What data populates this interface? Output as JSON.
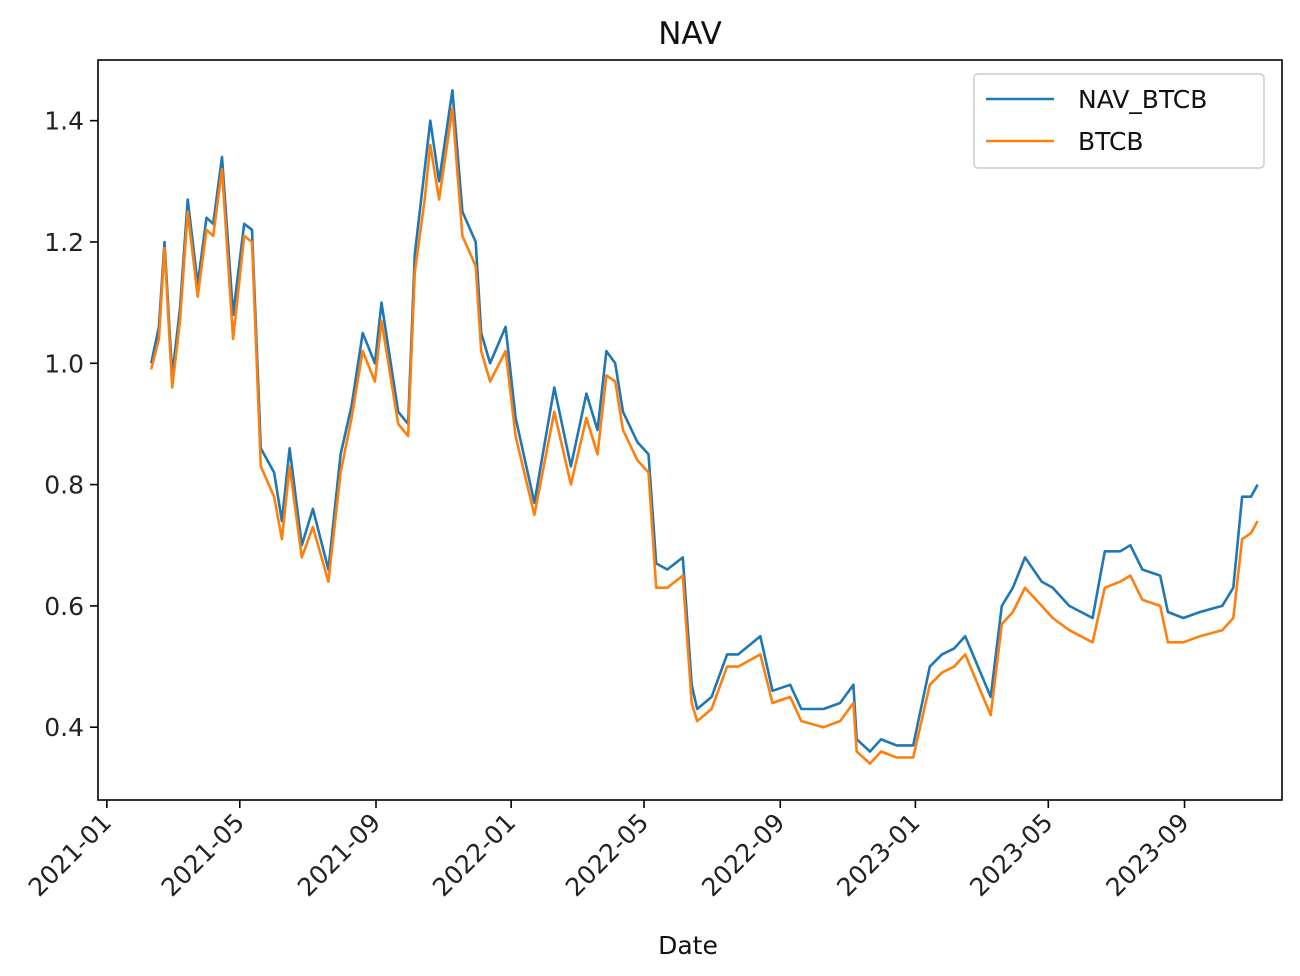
{
  "chart_data": {
    "type": "line",
    "title": "NAV",
    "xlabel": "Date",
    "ylabel": "",
    "x_range": [
      "2020-12-24",
      "2023-11-28"
    ],
    "ylim": [
      0.28,
      1.5
    ],
    "y_ticks": [
      0.4,
      0.6,
      0.8,
      1.0,
      1.2,
      1.4
    ],
    "x_ticks": [
      "2021-01",
      "2021-05",
      "2021-09",
      "2022-01",
      "2022-05",
      "2022-09",
      "2023-01",
      "2023-05",
      "2023-09"
    ],
    "grid": false,
    "legend_position": "top-right",
    "series": [
      {
        "name": "NAV_BTCB",
        "color": "#1f77b4",
        "points": [
          [
            "2021-02-10",
            1.0
          ],
          [
            "2021-02-17",
            1.06
          ],
          [
            "2021-02-22",
            1.2
          ],
          [
            "2021-03-01",
            0.98
          ],
          [
            "2021-03-08",
            1.09
          ],
          [
            "2021-03-15",
            1.27
          ],
          [
            "2021-03-24",
            1.13
          ],
          [
            "2021-04-01",
            1.24
          ],
          [
            "2021-04-07",
            1.23
          ],
          [
            "2021-04-15",
            1.34
          ],
          [
            "2021-04-25",
            1.08
          ],
          [
            "2021-05-05",
            1.23
          ],
          [
            "2021-05-12",
            1.22
          ],
          [
            "2021-05-20",
            0.86
          ],
          [
            "2021-06-01",
            0.82
          ],
          [
            "2021-06-08",
            0.74
          ],
          [
            "2021-06-15",
            0.86
          ],
          [
            "2021-06-26",
            0.7
          ],
          [
            "2021-07-06",
            0.76
          ],
          [
            "2021-07-20",
            0.66
          ],
          [
            "2021-07-31",
            0.85
          ],
          [
            "2021-08-10",
            0.93
          ],
          [
            "2021-08-20",
            1.05
          ],
          [
            "2021-08-31",
            1.0
          ],
          [
            "2021-09-06",
            1.1
          ],
          [
            "2021-09-21",
            0.92
          ],
          [
            "2021-09-30",
            0.9
          ],
          [
            "2021-10-06",
            1.18
          ],
          [
            "2021-10-15",
            1.32
          ],
          [
            "2021-10-20",
            1.4
          ],
          [
            "2021-10-28",
            1.3
          ],
          [
            "2021-11-09",
            1.45
          ],
          [
            "2021-11-18",
            1.25
          ],
          [
            "2021-11-30",
            1.2
          ],
          [
            "2021-12-05",
            1.05
          ],
          [
            "2021-12-13",
            1.0
          ],
          [
            "2021-12-27",
            1.06
          ],
          [
            "2022-01-05",
            0.91
          ],
          [
            "2022-01-22",
            0.77
          ],
          [
            "2022-02-09",
            0.96
          ],
          [
            "2022-02-24",
            0.83
          ],
          [
            "2022-03-10",
            0.95
          ],
          [
            "2022-03-20",
            0.89
          ],
          [
            "2022-03-28",
            1.02
          ],
          [
            "2022-04-05",
            1.0
          ],
          [
            "2022-04-12",
            0.92
          ],
          [
            "2022-04-25",
            0.87
          ],
          [
            "2022-05-05",
            0.85
          ],
          [
            "2022-05-12",
            0.67
          ],
          [
            "2022-05-22",
            0.66
          ],
          [
            "2022-06-05",
            0.68
          ],
          [
            "2022-06-13",
            0.47
          ],
          [
            "2022-06-18",
            0.43
          ],
          [
            "2022-07-01",
            0.45
          ],
          [
            "2022-07-15",
            0.52
          ],
          [
            "2022-07-25",
            0.52
          ],
          [
            "2022-08-14",
            0.55
          ],
          [
            "2022-08-25",
            0.46
          ],
          [
            "2022-09-10",
            0.47
          ],
          [
            "2022-09-20",
            0.43
          ],
          [
            "2022-10-10",
            0.43
          ],
          [
            "2022-10-25",
            0.44
          ],
          [
            "2022-11-06",
            0.47
          ],
          [
            "2022-11-09",
            0.38
          ],
          [
            "2022-11-21",
            0.36
          ],
          [
            "2022-12-01",
            0.38
          ],
          [
            "2022-12-15",
            0.37
          ],
          [
            "2022-12-30",
            0.37
          ],
          [
            "2023-01-14",
            0.5
          ],
          [
            "2023-01-25",
            0.52
          ],
          [
            "2023-02-05",
            0.53
          ],
          [
            "2023-02-15",
            0.55
          ],
          [
            "2023-03-10",
            0.45
          ],
          [
            "2023-03-20",
            0.6
          ],
          [
            "2023-03-30",
            0.63
          ],
          [
            "2023-04-10",
            0.68
          ],
          [
            "2023-04-25",
            0.64
          ],
          [
            "2023-05-05",
            0.63
          ],
          [
            "2023-05-20",
            0.6
          ],
          [
            "2023-06-10",
            0.58
          ],
          [
            "2023-06-21",
            0.69
          ],
          [
            "2023-07-05",
            0.69
          ],
          [
            "2023-07-14",
            0.7
          ],
          [
            "2023-07-25",
            0.66
          ],
          [
            "2023-08-10",
            0.65
          ],
          [
            "2023-08-17",
            0.59
          ],
          [
            "2023-08-31",
            0.58
          ],
          [
            "2023-09-15",
            0.59
          ],
          [
            "2023-10-05",
            0.6
          ],
          [
            "2023-10-15",
            0.63
          ],
          [
            "2023-10-23",
            0.78
          ],
          [
            "2023-10-31",
            0.78
          ],
          [
            "2023-11-06",
            0.8
          ]
        ]
      },
      {
        "name": "BTCB",
        "color": "#ff7f0e",
        "points": [
          [
            "2021-02-10",
            0.99
          ],
          [
            "2021-02-17",
            1.04
          ],
          [
            "2021-02-22",
            1.19
          ],
          [
            "2021-03-01",
            0.96
          ],
          [
            "2021-03-08",
            1.07
          ],
          [
            "2021-03-15",
            1.25
          ],
          [
            "2021-03-24",
            1.11
          ],
          [
            "2021-04-01",
            1.22
          ],
          [
            "2021-04-07",
            1.21
          ],
          [
            "2021-04-15",
            1.32
          ],
          [
            "2021-04-25",
            1.04
          ],
          [
            "2021-05-05",
            1.21
          ],
          [
            "2021-05-12",
            1.2
          ],
          [
            "2021-05-20",
            0.83
          ],
          [
            "2021-06-01",
            0.78
          ],
          [
            "2021-06-08",
            0.71
          ],
          [
            "2021-06-15",
            0.83
          ],
          [
            "2021-06-26",
            0.68
          ],
          [
            "2021-07-06",
            0.73
          ],
          [
            "2021-07-20",
            0.64
          ],
          [
            "2021-07-31",
            0.82
          ],
          [
            "2021-08-10",
            0.91
          ],
          [
            "2021-08-20",
            1.02
          ],
          [
            "2021-08-31",
            0.97
          ],
          [
            "2021-09-06",
            1.07
          ],
          [
            "2021-09-21",
            0.9
          ],
          [
            "2021-09-30",
            0.88
          ],
          [
            "2021-10-06",
            1.15
          ],
          [
            "2021-10-15",
            1.27
          ],
          [
            "2021-10-20",
            1.36
          ],
          [
            "2021-10-28",
            1.27
          ],
          [
            "2021-11-09",
            1.42
          ],
          [
            "2021-11-18",
            1.21
          ],
          [
            "2021-11-30",
            1.16
          ],
          [
            "2021-12-05",
            1.02
          ],
          [
            "2021-12-13",
            0.97
          ],
          [
            "2021-12-27",
            1.02
          ],
          [
            "2022-01-05",
            0.88
          ],
          [
            "2022-01-22",
            0.75
          ],
          [
            "2022-02-09",
            0.92
          ],
          [
            "2022-02-24",
            0.8
          ],
          [
            "2022-03-10",
            0.91
          ],
          [
            "2022-03-20",
            0.85
          ],
          [
            "2022-03-28",
            0.98
          ],
          [
            "2022-04-05",
            0.97
          ],
          [
            "2022-04-12",
            0.89
          ],
          [
            "2022-04-25",
            0.84
          ],
          [
            "2022-05-05",
            0.82
          ],
          [
            "2022-05-12",
            0.63
          ],
          [
            "2022-05-22",
            0.63
          ],
          [
            "2022-06-05",
            0.65
          ],
          [
            "2022-06-13",
            0.44
          ],
          [
            "2022-06-18",
            0.41
          ],
          [
            "2022-07-01",
            0.43
          ],
          [
            "2022-07-15",
            0.5
          ],
          [
            "2022-07-25",
            0.5
          ],
          [
            "2022-08-14",
            0.52
          ],
          [
            "2022-08-25",
            0.44
          ],
          [
            "2022-09-10",
            0.45
          ],
          [
            "2022-09-20",
            0.41
          ],
          [
            "2022-10-10",
            0.4
          ],
          [
            "2022-10-25",
            0.41
          ],
          [
            "2022-11-06",
            0.44
          ],
          [
            "2022-11-09",
            0.36
          ],
          [
            "2022-11-21",
            0.34
          ],
          [
            "2022-12-01",
            0.36
          ],
          [
            "2022-12-15",
            0.35
          ],
          [
            "2022-12-30",
            0.35
          ],
          [
            "2023-01-14",
            0.47
          ],
          [
            "2023-01-25",
            0.49
          ],
          [
            "2023-02-05",
            0.5
          ],
          [
            "2023-02-15",
            0.52
          ],
          [
            "2023-03-10",
            0.42
          ],
          [
            "2023-03-20",
            0.57
          ],
          [
            "2023-03-30",
            0.59
          ],
          [
            "2023-04-10",
            0.63
          ],
          [
            "2023-04-25",
            0.6
          ],
          [
            "2023-05-05",
            0.58
          ],
          [
            "2023-05-20",
            0.56
          ],
          [
            "2023-06-10",
            0.54
          ],
          [
            "2023-06-21",
            0.63
          ],
          [
            "2023-07-05",
            0.64
          ],
          [
            "2023-07-14",
            0.65
          ],
          [
            "2023-07-25",
            0.61
          ],
          [
            "2023-08-10",
            0.6
          ],
          [
            "2023-08-17",
            0.54
          ],
          [
            "2023-08-31",
            0.54
          ],
          [
            "2023-09-15",
            0.55
          ],
          [
            "2023-10-05",
            0.56
          ],
          [
            "2023-10-15",
            0.58
          ],
          [
            "2023-10-23",
            0.71
          ],
          [
            "2023-10-31",
            0.72
          ],
          [
            "2023-11-06",
            0.74
          ]
        ]
      }
    ]
  }
}
